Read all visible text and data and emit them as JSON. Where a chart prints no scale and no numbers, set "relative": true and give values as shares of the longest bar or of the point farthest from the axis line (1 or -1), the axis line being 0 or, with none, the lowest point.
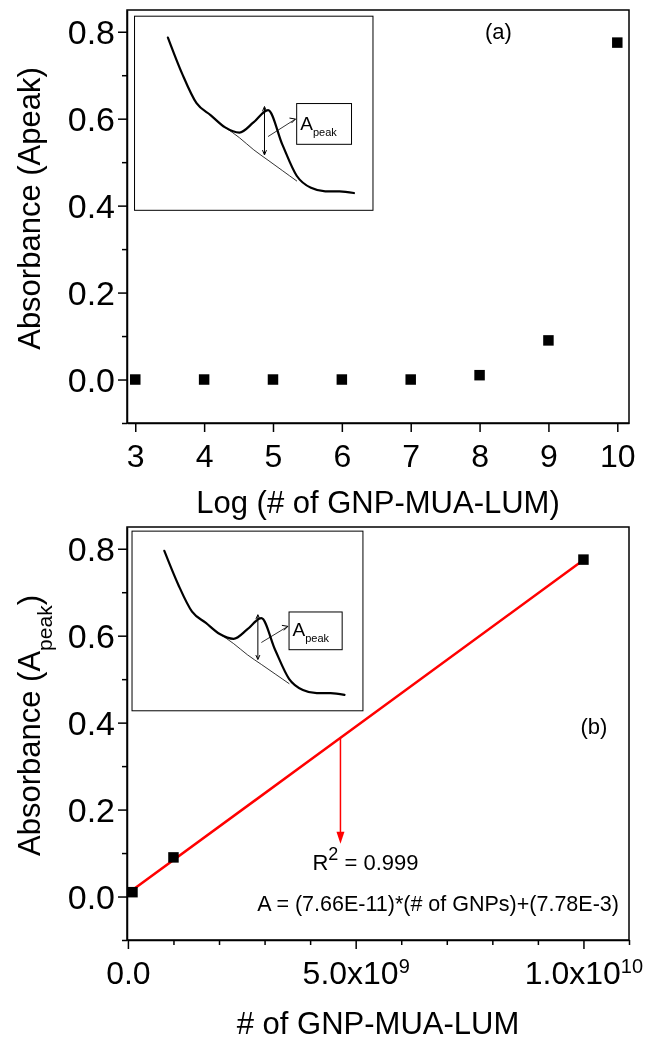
{
  "chart_data": [
    {
      "type": "scatter",
      "xlabel": "Log (# of GNP-MUA-LUM)",
      "ylabel": "Absorbance (Apeak)",
      "x": [
        3,
        4,
        5,
        6,
        7,
        8,
        9,
        10
      ],
      "series": [
        {
          "color": "#000000",
          "marker": "square",
          "values": [
            0,
            0,
            0,
            0,
            0,
            0.01,
            0.09,
            0.775
          ]
        }
      ],
      "xlim": [
        2.88,
        10.17
      ],
      "ylim": [
        -0.1,
        0.85
      ],
      "xticks": [
        3,
        4,
        5,
        6,
        7,
        8,
        9,
        10
      ],
      "yticks": [
        {
          "value": -0.1,
          "label": null
        },
        {
          "value": 0,
          "label": "0.0"
        },
        {
          "value": 0.1,
          "label": null
        },
        {
          "value": 0.2,
          "label": "0.2"
        },
        {
          "value": 0.3,
          "label": null
        },
        {
          "value": 0.4,
          "label": "0.4"
        },
        {
          "value": 0.5,
          "label": null
        },
        {
          "value": 0.6,
          "label": "0.6"
        },
        {
          "value": 0.7,
          "label": null
        },
        {
          "value": 0.8,
          "label": "0.8"
        }
      ],
      "annotations": [
        "(a)"
      ],
      "grid": false
    },
    {
      "type": "line",
      "relative": true,
      "categories": [
        null,
        null,
        null,
        null,
        null,
        null,
        null,
        null,
        null,
        null,
        null,
        null,
        null,
        null
      ],
      "series": [
        {
          "color": "#000000",
          "values": [
            1,
            0.79,
            0.62,
            0.55,
            0.48,
            0.45,
            0.51,
            0.58,
            0.38,
            0.2,
            0.13,
            0.11,
            0.11,
            0.1
          ]
        },
        {
          "color": "#000000",
          "values": [
            null,
            null,
            null,
            null,
            0.48,
            0.42,
            0.35,
            0.29,
            0.23,
            0.17,
            null,
            null,
            null,
            null
          ]
        }
      ],
      "annotations": [
        "A$_{peak}$"
      ]
    },
    {
      "type": "scatter",
      "xlabel": "# of GNP-MUA-LUM",
      "ylabel": "Absorbance (A$_{peak}$)",
      "x": [
        100000000,
        1000000000,
        10000000000
      ],
      "series": [
        {
          "color": "#000000",
          "marker": "square",
          "values": [
            0.01,
            0.09,
            0.775
          ]
        },
        {
          "type": "line",
          "color": "#ff0000",
          "x": [
            100000000,
            10000000000
          ],
          "values": [
            0.015,
            0.774
          ]
        }
      ],
      "xlim": [
        -20000000,
        11000000000
      ],
      "ylim": [
        -0.1,
        0.85
      ],
      "xticks": [
        {
          "value": 0,
          "label": "0.0"
        },
        {
          "value": 1000000000,
          "label": null
        },
        {
          "value": 2000000000,
          "label": null
        },
        {
          "value": 3000000000,
          "label": null
        },
        {
          "value": 4000000000,
          "label": null
        },
        {
          "value": 5000000000,
          "label": "5.0x10$^{9}$"
        },
        {
          "value": 6000000000,
          "label": null
        },
        {
          "value": 7000000000,
          "label": null
        },
        {
          "value": 8000000000,
          "label": null
        },
        {
          "value": 9000000000,
          "label": null
        },
        {
          "value": 10000000000,
          "label": "1.0x10$^{10}$"
        },
        {
          "value": 11000000000,
          "label": null
        }
      ],
      "yticks": [
        {
          "value": -0.1,
          "label": null
        },
        {
          "value": 0,
          "label": "0.0"
        },
        {
          "value": 0.1,
          "label": null
        },
        {
          "value": 0.2,
          "label": "0.2"
        },
        {
          "value": 0.3,
          "label": null
        },
        {
          "value": 0.4,
          "label": "0.4"
        },
        {
          "value": 0.5,
          "label": null
        },
        {
          "value": 0.6,
          "label": "0.6"
        },
        {
          "value": 0.7,
          "label": null
        },
        {
          "value": 0.8,
          "label": "0.8"
        }
      ],
      "annotations": [
        "(b)",
        "R$^{2}$ = 0.999",
        "A = (7.66E-11)*(# of GNPs)+(7.78E-3)"
      ],
      "grid": false
    },
    {
      "type": "line",
      "relative": true,
      "categories": [
        null,
        null,
        null,
        null,
        null,
        null,
        null,
        null,
        null,
        null,
        null,
        null,
        null,
        null
      ],
      "series": [
        {
          "color": "#000000",
          "values": [
            1,
            0.79,
            0.62,
            0.55,
            0.48,
            0.45,
            0.51,
            0.58,
            0.38,
            0.2,
            0.13,
            0.11,
            0.11,
            0.1
          ]
        },
        {
          "color": "#000000",
          "values": [
            null,
            null,
            null,
            null,
            0.48,
            0.42,
            0.35,
            0.29,
            0.23,
            0.17,
            null,
            null,
            null,
            null
          ]
        }
      ],
      "annotations": [
        "A$_{peak}$"
      ]
    }
  ]
}
